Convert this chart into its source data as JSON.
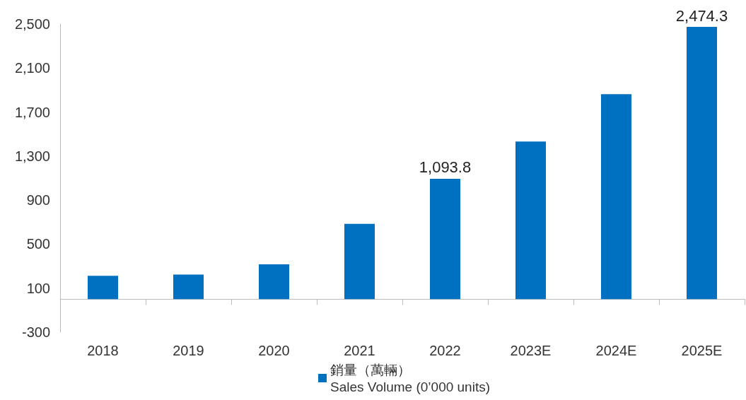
{
  "chart_data": {
    "type": "bar",
    "categories": [
      "2018",
      "2019",
      "2020",
      "2021",
      "2022",
      "2023E",
      "2024E",
      "2025E"
    ],
    "series": [
      {
        "name": "銷量（萬輛）\nSales Volume (0’000 units)",
        "color": "#0070c0",
        "values": [
          212,
          224,
          316,
          684,
          1093.8,
          1432,
          1862,
          2474.3
        ],
        "value_labels": [
          null,
          null,
          null,
          null,
          "1,093.8",
          null,
          null,
          "2,474.3"
        ]
      }
    ],
    "ylim": [
      -300,
      2500
    ],
    "yticks": [
      -300,
      100,
      500,
      900,
      {
        "value": 1300,
        "label": "1,300"
      },
      {
        "value": 1700,
        "label": "1,700"
      },
      {
        "value": 2100,
        "label": "2,100"
      },
      {
        "value": 2500,
        "label": "2,500"
      }
    ],
    "grid": false,
    "legend": "bottom"
  }
}
